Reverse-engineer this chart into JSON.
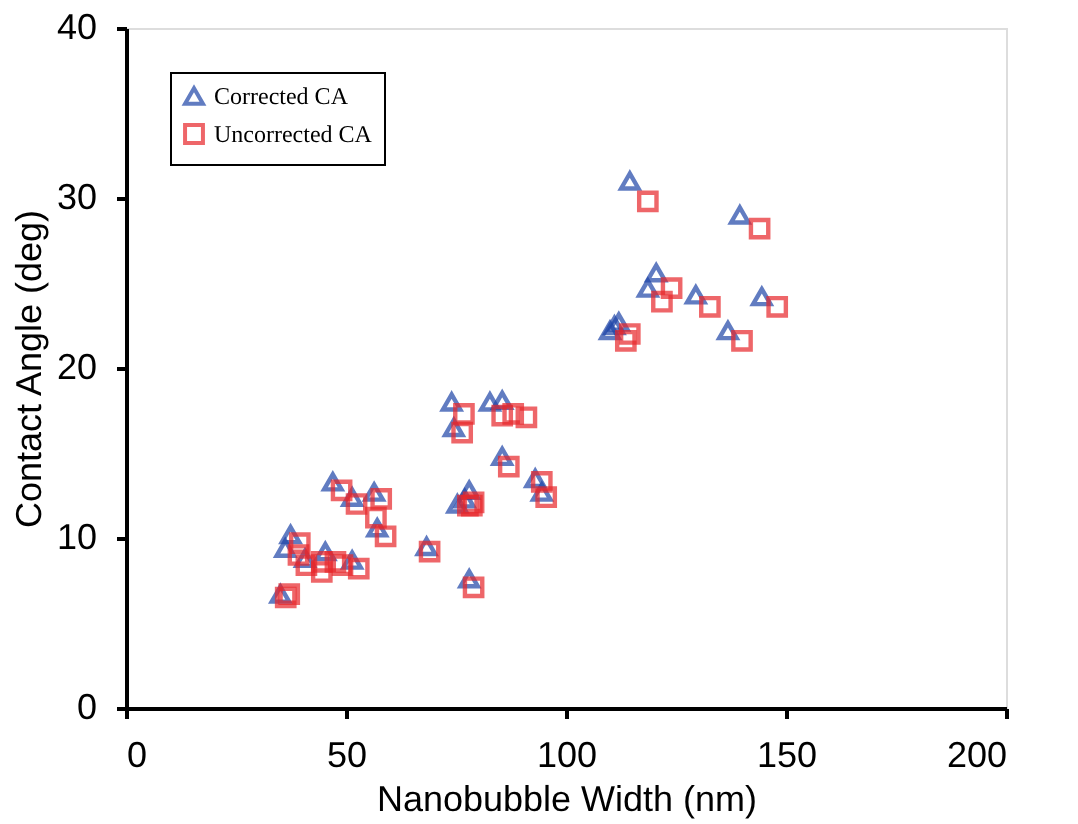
{
  "chart_data": {
    "type": "scatter",
    "xlabel": "Nanobubble Width (nm)",
    "ylabel": "Contact Angle (deg)",
    "xlim": [
      0,
      200
    ],
    "xticks": [
      0,
      50,
      100,
      150,
      200
    ],
    "ylim": [
      0,
      40
    ],
    "yticks": [
      0,
      10,
      20,
      30,
      40
    ],
    "grid": false,
    "legend": "top left",
    "series": [
      {
        "name": "Corrected CA",
        "color": "#1f45a8",
        "marker": "triangle",
        "x": [
          114.5,
          139.5,
          120.5,
          118.6,
          129.5,
          144.5,
          136.8,
          110,
          111,
          112,
          74,
          74.5,
          82.7,
          85.5,
          85.5,
          78,
          77,
          93,
          94.5,
          78,
          47,
          56.4,
          51.4,
          57.1,
          37.4,
          36.2,
          45.3,
          51.4,
          40.7,
          68.3,
          35.1,
          75.3
        ],
        "values": [
          31,
          29,
          25.6,
          24.7,
          24.3,
          24.2,
          22.2,
          22.2,
          22.5,
          22.7,
          18,
          16.5,
          18,
          18.1,
          14.8,
          12.8,
          12.3,
          13.5,
          12.7,
          7.6,
          13.3,
          12.7,
          12.4,
          10.6,
          10.2,
          9.4,
          9.2,
          8.7,
          8.8,
          9.5,
          6.7,
          12
        ]
      },
      {
        "name": "Uncorrected CA",
        "color": "#e8262a",
        "marker": "square",
        "x": [
          118.6,
          144,
          124,
          121.8,
          132.7,
          148,
          140,
          113.6,
          114.5,
          76.8,
          76.4,
          85.5,
          88,
          91,
          87,
          79,
          77.7,
          94.5,
          95.5,
          79,
          49,
          58,
          52.4,
          59,
          56.8,
          39.5,
          39.2,
          41,
          44.5,
          44.5,
          47.6,
          49.2,
          52.9,
          69,
          37.1,
          36.3,
          78.6
        ],
        "values": [
          29.8,
          28.2,
          24.7,
          23.9,
          23.6,
          23.6,
          21.6,
          21.6,
          22,
          17.3,
          16.2,
          17.2,
          17.3,
          17.1,
          14.2,
          12.1,
          11.9,
          13.3,
          12.4,
          7.1,
          12.8,
          12.3,
          12,
          10.1,
          11.2,
          9.7,
          9,
          8.4,
          8,
          8.6,
          8.6,
          8.4,
          8.2,
          9.2,
          6.7,
          6.5,
          11.9
        ]
      }
    ]
  }
}
